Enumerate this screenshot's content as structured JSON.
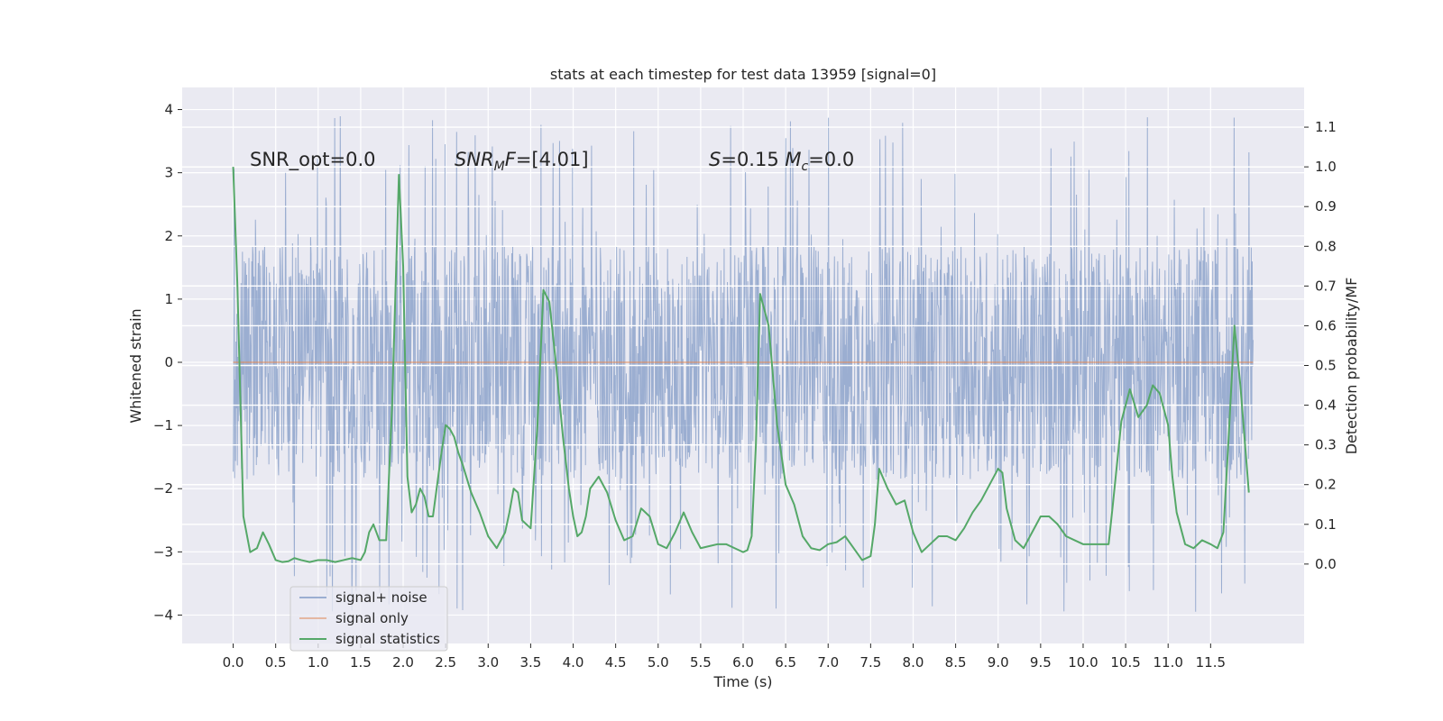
{
  "chart_data": {
    "type": "line",
    "title": "stats at each timestep for test data 13959 [signal=0]",
    "xlabel": "Time (s)",
    "ylabel": "Whitened strain",
    "ylabel_right": "Detection probability/MF",
    "xlim": [
      -0.6,
      12.6
    ],
    "ylim": [
      -4.45,
      4.35
    ],
    "ylim_right": [
      -0.2,
      1.2
    ],
    "x_ticks": [
      0.0,
      0.5,
      1.0,
      1.5,
      2.0,
      2.5,
      3.0,
      3.5,
      4.0,
      4.5,
      5.0,
      5.5,
      6.0,
      6.5,
      7.0,
      7.5,
      8.0,
      8.5,
      9.0,
      9.5,
      10.0,
      10.5,
      11.0,
      11.5
    ],
    "x_tick_labels": [
      "0.0",
      "0.5",
      "1.0",
      "1.5",
      "2.0",
      "2.5",
      "3.0",
      "3.5",
      "4.0",
      "4.5",
      "5.0",
      "5.5",
      "6.0",
      "6.5",
      "7.0",
      "7.5",
      "8.0",
      "8.5",
      "9.0",
      "9.5",
      "10.0",
      "10.5",
      "11.0",
      "11.5"
    ],
    "y_ticks": [
      -4,
      -3,
      -2,
      -1,
      0,
      1,
      2,
      3,
      4
    ],
    "y_tick_labels": [
      "−4",
      "−3",
      "−2",
      "−1",
      "0",
      "1",
      "2",
      "3",
      "4"
    ],
    "y_right_ticks": [
      0.0,
      0.1,
      0.2,
      0.3,
      0.4,
      0.5,
      0.6,
      0.7,
      0.8,
      0.9,
      1.0,
      1.1
    ],
    "y_right_tick_labels": [
      "0.0",
      "0.1",
      "0.2",
      "0.3",
      "0.4",
      "0.5",
      "0.6",
      "0.7",
      "0.8",
      "0.9",
      "1.0",
      "1.1"
    ],
    "grid": true,
    "legend_position": "lower-left",
    "noise": {
      "duration": 12.0,
      "typical_amplitude": 1.85,
      "max": 3.95,
      "min": -4.1
    },
    "annotations": [
      {
        "text": "SNR_opt=0.0",
        "x": 0.2,
        "y_axis": 3.1
      },
      {
        "text": "SNR_MF=[4.01]",
        "x": 2.6,
        "y_axis": 3.1
      },
      {
        "text": "S=0.15   M_c=0.0",
        "x": 5.6,
        "y_axis": 3.1
      }
    ],
    "series": [
      {
        "name": "signal+ noise",
        "color": "#4c72b0",
        "axis": "left"
      },
      {
        "name": "signal only",
        "color": "#dd8452",
        "axis": "left",
        "x": [
          0.0,
          12.0
        ],
        "y": [
          0.0,
          0.0
        ]
      },
      {
        "name": "signal statistics",
        "color": "#55a868",
        "axis": "right",
        "x": [
          0.0,
          0.05,
          0.12,
          0.2,
          0.28,
          0.35,
          0.42,
          0.5,
          0.58,
          0.65,
          0.72,
          0.8,
          0.9,
          1.0,
          1.1,
          1.2,
          1.3,
          1.4,
          1.5,
          1.55,
          1.6,
          1.65,
          1.72,
          1.8,
          1.87,
          1.95,
          2.0,
          2.05,
          2.1,
          2.15,
          2.2,
          2.25,
          2.3,
          2.35,
          2.4,
          2.45,
          2.5,
          2.55,
          2.6,
          2.65,
          2.7,
          2.8,
          2.9,
          3.0,
          3.1,
          3.2,
          3.25,
          3.3,
          3.35,
          3.4,
          3.5,
          3.58,
          3.65,
          3.72,
          3.8,
          3.88,
          3.95,
          4.0,
          4.05,
          4.1,
          4.15,
          4.2,
          4.3,
          4.4,
          4.5,
          4.6,
          4.7,
          4.8,
          4.9,
          5.0,
          5.1,
          5.2,
          5.3,
          5.4,
          5.5,
          5.6,
          5.7,
          5.8,
          5.9,
          6.0,
          6.05,
          6.1,
          6.15,
          6.2,
          6.3,
          6.4,
          6.5,
          6.6,
          6.7,
          6.8,
          6.9,
          7.0,
          7.1,
          7.2,
          7.3,
          7.4,
          7.5,
          7.55,
          7.6,
          7.7,
          7.8,
          7.9,
          8.0,
          8.1,
          8.2,
          8.3,
          8.4,
          8.5,
          8.6,
          8.7,
          8.8,
          8.9,
          9.0,
          9.05,
          9.1,
          9.2,
          9.3,
          9.4,
          9.5,
          9.6,
          9.7,
          9.8,
          9.9,
          10.0,
          10.1,
          10.2,
          10.3,
          10.35,
          10.45,
          10.55,
          10.65,
          10.75,
          10.82,
          10.9,
          11.0,
          11.05,
          11.1,
          11.2,
          11.3,
          11.4,
          11.5,
          11.58,
          11.65,
          11.72,
          11.78,
          11.85,
          11.95
        ],
        "y": [
          1.0,
          0.7,
          0.12,
          0.03,
          0.04,
          0.08,
          0.05,
          0.01,
          0.005,
          0.007,
          0.015,
          0.01,
          0.005,
          0.01,
          0.01,
          0.005,
          0.01,
          0.015,
          0.01,
          0.03,
          0.08,
          0.1,
          0.06,
          0.06,
          0.4,
          0.98,
          0.75,
          0.22,
          0.13,
          0.15,
          0.19,
          0.17,
          0.12,
          0.12,
          0.2,
          0.28,
          0.35,
          0.34,
          0.32,
          0.28,
          0.25,
          0.18,
          0.13,
          0.07,
          0.04,
          0.08,
          0.13,
          0.19,
          0.18,
          0.11,
          0.09,
          0.35,
          0.69,
          0.66,
          0.5,
          0.32,
          0.19,
          0.12,
          0.07,
          0.08,
          0.12,
          0.19,
          0.22,
          0.18,
          0.11,
          0.06,
          0.07,
          0.14,
          0.12,
          0.05,
          0.04,
          0.08,
          0.13,
          0.08,
          0.04,
          0.045,
          0.05,
          0.05,
          0.04,
          0.03,
          0.035,
          0.07,
          0.3,
          0.68,
          0.6,
          0.35,
          0.2,
          0.15,
          0.07,
          0.04,
          0.035,
          0.05,
          0.055,
          0.07,
          0.04,
          0.01,
          0.02,
          0.1,
          0.24,
          0.19,
          0.15,
          0.16,
          0.08,
          0.03,
          0.05,
          0.07,
          0.07,
          0.06,
          0.09,
          0.13,
          0.16,
          0.2,
          0.24,
          0.23,
          0.14,
          0.06,
          0.04,
          0.08,
          0.12,
          0.12,
          0.1,
          0.07,
          0.06,
          0.05,
          0.05,
          0.05,
          0.05,
          0.15,
          0.36,
          0.44,
          0.37,
          0.4,
          0.45,
          0.43,
          0.35,
          0.22,
          0.13,
          0.05,
          0.04,
          0.06,
          0.05,
          0.04,
          0.08,
          0.35,
          0.6,
          0.45,
          0.18
        ]
      }
    ]
  }
}
